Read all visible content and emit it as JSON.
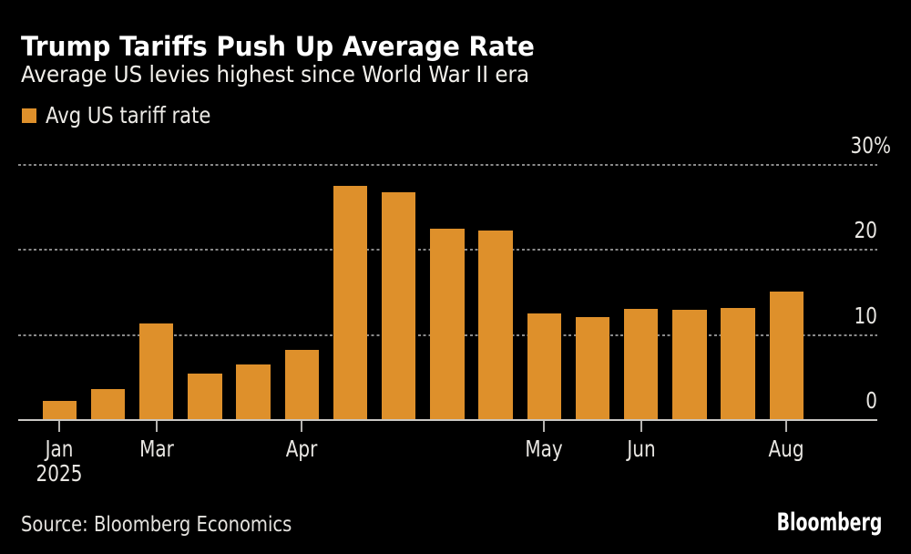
{
  "header": {
    "title": "Trump Tariffs Push Up Average Rate",
    "subtitle": "Average US levies highest since World War II era"
  },
  "legend": {
    "label": "Avg US tariff rate",
    "swatch_color": "#de902b"
  },
  "footer": {
    "source": "Source: Bloomberg Economics",
    "logo": "Bloomberg"
  },
  "chart_data": {
    "type": "bar",
    "title": "Trump Tariffs Push Up Average Rate",
    "subtitle": "Average US levies highest since World War II era",
    "series_name": "Avg US tariff rate",
    "unit": "percent",
    "values": [
      2.2,
      3.6,
      11.4,
      5.5,
      6.5,
      8.3,
      27.5,
      26.8,
      22.5,
      22.3,
      12.5,
      12.1,
      13.1,
      13.0,
      13.2,
      15.1
    ],
    "x_tick_labels": [
      {
        "bar_index": 0,
        "label": "Jan",
        "sublabel": "2025"
      },
      {
        "bar_index": 2,
        "label": "Mar",
        "sublabel": ""
      },
      {
        "bar_index": 5,
        "label": "Apr",
        "sublabel": ""
      },
      {
        "bar_index": 10,
        "label": "May",
        "sublabel": ""
      },
      {
        "bar_index": 12,
        "label": "Jun",
        "sublabel": ""
      },
      {
        "bar_index": 15,
        "label": "Aug",
        "sublabel": ""
      }
    ],
    "y_ticks": [
      {
        "value": 30,
        "label": "30%"
      },
      {
        "value": 20,
        "label": "20"
      },
      {
        "value": 10,
        "label": "10"
      },
      {
        "value": 0,
        "label": "0"
      }
    ],
    "ylim": [
      0,
      30
    ],
    "bar_color": "#de902b",
    "background": "#000000",
    "grid": "dotted-horizontal",
    "legend_position": "top-left",
    "y_axis_side": "right"
  }
}
